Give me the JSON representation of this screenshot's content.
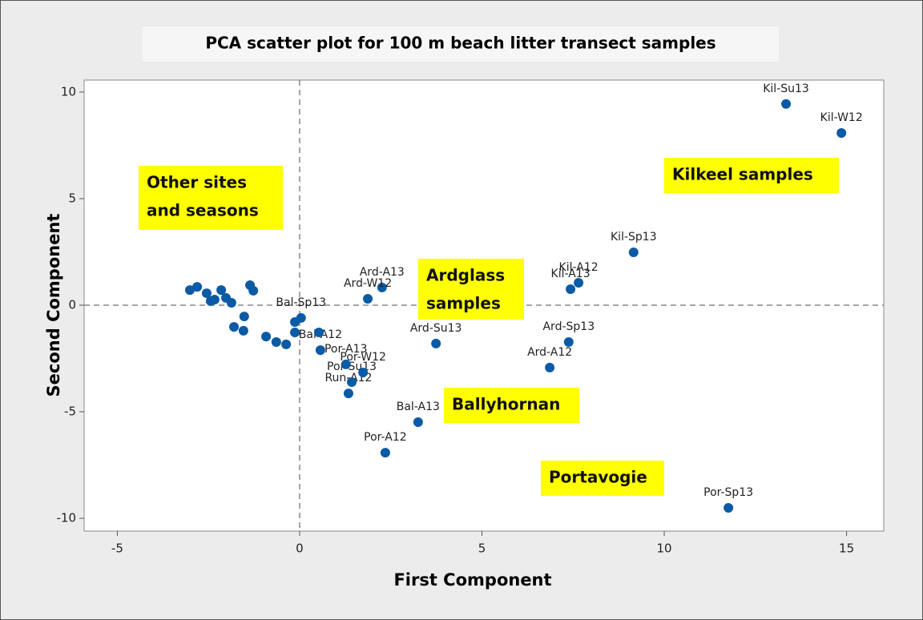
{
  "chart_data": {
    "type": "scatter",
    "title": "PCA scatter plot for 100 m beach litter transect samples",
    "xlabel": "First Component",
    "ylabel": "Second Component",
    "xlim": [
      -5.91,
      16.02
    ],
    "ylim": [
      -10.6,
      10.56
    ],
    "xticks": [
      -5,
      0,
      5,
      10,
      15
    ],
    "yticks": [
      -10,
      -5,
      0,
      5,
      10
    ],
    "reference_lines": {
      "x": 0,
      "y": 0
    },
    "color": "#0b5aa6",
    "x": [
      13.34,
      14.86,
      9.16,
      7.65,
      7.43,
      7.38,
      6.86,
      3.74,
      2.26,
      1.87,
      3.25,
      2.35,
      11.76,
      1.34,
      1.43,
      1.74,
      1.27,
      0.57,
      0.04,
      0.53,
      -3.01,
      -2.81,
      -2.55,
      -2.44,
      -2.33,
      -2.15,
      -2.02,
      -1.87,
      -1.8,
      -1.54,
      -1.36,
      -1.27,
      -1.52,
      -0.92,
      -0.64,
      -0.37,
      -0.13,
      -0.13
    ],
    "values": [
      9.44,
      8.08,
      2.48,
      1.05,
      0.75,
      -1.73,
      -2.93,
      -1.8,
      0.83,
      0.3,
      -5.49,
      -6.92,
      -9.51,
      -4.14,
      -3.61,
      -3.16,
      -2.78,
      -2.11,
      -0.6,
      -1.28,
      0.71,
      0.86,
      0.56,
      0.19,
      0.26,
      0.71,
      0.34,
      0.11,
      -1.02,
      -1.2,
      0.94,
      0.68,
      -0.53,
      -1.47,
      -1.73,
      -1.84,
      -1.28,
      -0.79
    ],
    "labels": [
      "Kil-Su13",
      "Kil-W12",
      "Kil-Sp13",
      "Kil-A12",
      "Kil-A13",
      "Ard-Sp13",
      "Ard-A12",
      "Ard-Su13",
      "Ard-A13",
      "Ard-W12",
      "Bal-A13",
      "Por-A12",
      "Por-Sp13",
      "Run-A12",
      "Por-Su13",
      "Por-W12",
      "Por-A13",
      "Bal-A12",
      "Bal-Sp13",
      null,
      null,
      null,
      null,
      null,
      null,
      null,
      null,
      null,
      null,
      null,
      null,
      null,
      null,
      null,
      null,
      null,
      null,
      null
    ],
    "annotations": [
      [
        "Other sites",
        "and seasons"
      ],
      [
        "Kilkeel samples"
      ],
      [
        "Ardglass",
        "samples"
      ],
      [
        "Ballyhornan"
      ],
      [
        "Portavogie"
      ]
    ]
  }
}
